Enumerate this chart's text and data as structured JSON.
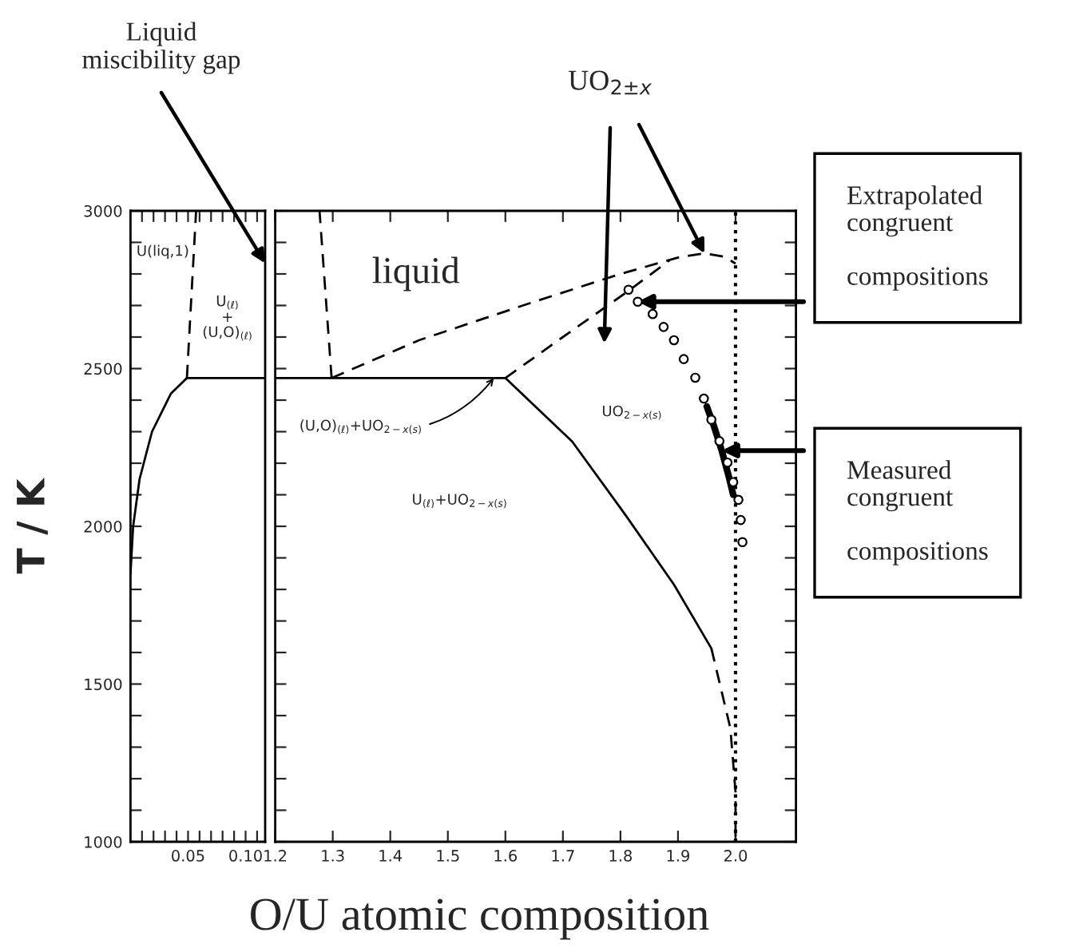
{
  "chart_data": [
    {
      "type": "line",
      "ylabel": "T / K",
      "xlim": [
        0,
        0.117
      ],
      "ylim": [
        1000,
        3000
      ],
      "xticks": [
        {
          "value": 0.01,
          "label": null
        },
        {
          "value": 0.02,
          "label": null
        },
        {
          "value": 0.03,
          "label": null
        },
        {
          "value": 0.04,
          "label": null
        },
        {
          "value": 0.05,
          "label": "0.05"
        },
        {
          "value": 0.06,
          "label": null
        },
        {
          "value": 0.07,
          "label": null
        },
        {
          "value": 0.08,
          "label": null
        },
        {
          "value": 0.09,
          "label": null
        },
        {
          "value": 0.1,
          "label": "0.10"
        },
        {
          "value": 0.11,
          "label": null
        }
      ],
      "yticks": [
        1000,
        {
          "value": 1100,
          "label": null
        },
        {
          "value": 1200,
          "label": null
        },
        {
          "value": 1300,
          "label": null
        },
        {
          "value": 1400,
          "label": null
        },
        1500,
        {
          "value": 1600,
          "label": null
        },
        {
          "value": 1700,
          "label": null
        },
        {
          "value": 1800,
          "label": null
        },
        {
          "value": 1900,
          "label": null
        },
        2000,
        {
          "value": 2100,
          "label": null
        },
        {
          "value": 2200,
          "label": null
        },
        {
          "value": 2300,
          "label": null
        },
        {
          "value": 2400,
          "label": null
        },
        2500,
        {
          "value": 2600,
          "label": null
        },
        {
          "value": 2700,
          "label": null
        },
        {
          "value": 2800,
          "label": null
        },
        {
          "value": 2900,
          "label": null
        },
        3000
      ],
      "series": [
        {
          "color": "#000000",
          "line_style": "solid",
          "x": [
            0,
            0.0023,
            0.0079,
            0.0187,
            0.035,
            0.049
          ],
          "values": [
            1850,
            2000,
            2150,
            2300,
            2420,
            2470
          ]
        },
        {
          "color": "#000000",
          "line_style": "solid",
          "x": [
            0.049,
            0.117
          ],
          "values": [
            2470,
            2470
          ]
        },
        {
          "color": "#000000",
          "line_style": "dashed",
          "x": [
            0.049,
            0.057
          ],
          "values": [
            2470,
            3000
          ]
        }
      ],
      "annotations": [
        "U(liq,1)",
        "U$_{(ℓ)}$\n+\n(U,O)$_{(ℓ)}$",
        "Liquid\nmiscibility gap"
      ]
    },
    {
      "type": "line",
      "xlabel": "O/U atomic composition",
      "xlim": [
        1.2,
        2.105
      ],
      "ylim": [
        1000,
        3000
      ],
      "tick_labels": "x",
      "xticks": [
        {
          "value": 1.2,
          "label": "1.2"
        },
        {
          "value": 1.3,
          "label": "1.3"
        },
        {
          "value": 1.4,
          "label": "1.4"
        },
        {
          "value": 1.5,
          "label": "1.5"
        },
        {
          "value": 1.6,
          "label": "1.6"
        },
        {
          "value": 1.7,
          "label": "1.7"
        },
        {
          "value": 1.8,
          "label": "1.8"
        },
        {
          "value": 1.9,
          "label": "1.9"
        },
        {
          "value": 2.0,
          "label": "2.0"
        }
      ],
      "yticks": [
        1000,
        1100,
        1200,
        1300,
        1400,
        1500,
        1600,
        1700,
        1800,
        1900,
        2000,
        2100,
        2200,
        2300,
        2400,
        2500,
        2600,
        2700,
        2800,
        2900,
        3000
      ],
      "ref_lines": [
        {
          "axis": "x",
          "value": 2.0,
          "line_style": "dotted",
          "color": "#000000"
        }
      ],
      "series": [
        {
          "color": "#000000",
          "line_style": "solid",
          "x": [
            1.2,
            1.6
          ],
          "values": [
            2470,
            2470
          ]
        },
        {
          "color": "#000000",
          "line_style": "dashed",
          "x": [
            1.298,
            1.277
          ],
          "values": [
            2470,
            3000
          ]
        },
        {
          "color": "#000000",
          "line_style": "solid",
          "x": [
            1.6,
            1.716,
            1.809,
            1.893,
            1.958
          ],
          "values": [
            2470,
            2269,
            2035,
            1815,
            1613
          ]
        },
        {
          "color": "#000000",
          "line_style": "dashed",
          "x": [
            1.958,
            1.991,
            2.0,
            2.0
          ],
          "values": [
            1613,
            1360,
            1158,
            1000
          ]
        },
        {
          "color": "#000000",
          "line_style": "dashed",
          "x": [
            1.298,
            1.45,
            1.642,
            1.8,
            1.904,
            1.946,
            1.98,
            2.0
          ],
          "values": [
            2470,
            2590,
            2707,
            2800,
            2854,
            2865,
            2855,
            2833
          ]
        },
        {
          "color": "#000000",
          "line_style": "dashed",
          "x": [
            1.6,
            1.7,
            1.813,
            1.885
          ],
          "values": [
            2470,
            2600,
            2745,
            2843
          ]
        },
        {
          "type": "scatter",
          "color": "#000000",
          "marker": "circle",
          "x": [
            1.814,
            1.83,
            1.856,
            1.875,
            1.893,
            1.91,
            1.93,
            1.945,
            1.958,
            1.972,
            1.986,
            1.996,
            2.005,
            2.009,
            2.012
          ],
          "values": [
            2750,
            2712,
            2673,
            2632,
            2590,
            2530,
            2471,
            2405,
            2338,
            2270,
            2202,
            2140,
            2084,
            2020,
            1950
          ]
        },
        {
          "color": "#000000",
          "line_style": "solid",
          "x": [
            1.95,
            1.962,
            1.976,
            1.988,
            1.996
          ],
          "values": [
            2380,
            2320,
            2240,
            2160,
            2100
          ]
        }
      ],
      "annotations": [
        "liquid",
        {
          "text": "(U,O)$_{(ℓ)}$+UO$_{2−x(s)}$",
          "x": 1.58,
          "y": 2470
        },
        "UO$_{2−x(s)}$",
        "U$_{(ℓ)}$+UO$_{2−x(s)}$",
        "UO$_{2±x}$",
        "Extrapolated\ncongruent\n\ncompositions",
        "Measured\ncongruent\n\ncompositions"
      ]
    }
  ]
}
